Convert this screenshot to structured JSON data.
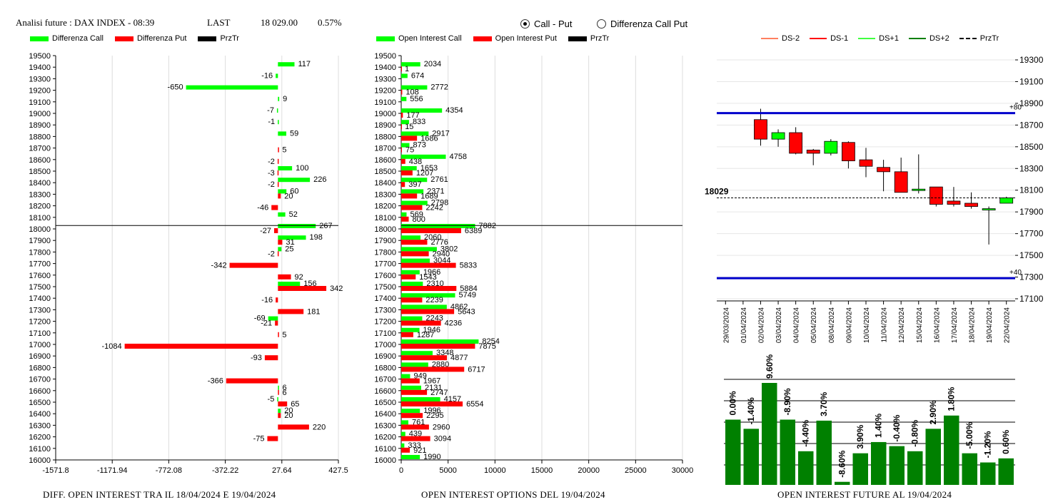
{
  "header": {
    "title": "Analisi future : DAX INDEX - 08:39",
    "last_label": "LAST",
    "last_value": "18 029.00",
    "change": "0.57%"
  },
  "radio": {
    "option1": "Call - Put",
    "option2": "Differenza Call Put",
    "selected": 1
  },
  "colors": {
    "green": "#00ff00",
    "red": "#ff0000",
    "darkgreen": "#008000",
    "blue": "#0000cc"
  },
  "captions": {
    "left": "DIFF. OPEN INTEREST TRA IL 18/04/2024 E 19/04/2024",
    "middle": "OPEN INTEREST OPTIONS DEL 19/04/2024",
    "right": "OPEN INTEREST FUTURE AL 19/04/2024"
  },
  "chart_data": [
    {
      "id": "diff_oi",
      "type": "bar",
      "orientation": "horizontal",
      "legend": [
        "Differenza Call",
        "Differenza Put",
        "PrzTr"
      ],
      "strikes": [
        19500,
        19400,
        19300,
        19200,
        19100,
        19000,
        18900,
        18800,
        18700,
        18600,
        18500,
        18400,
        18300,
        18200,
        18100,
        18000,
        17900,
        17800,
        17700,
        17600,
        17500,
        17400,
        17300,
        17200,
        17100,
        17000,
        16900,
        16800,
        16700,
        16600,
        16500,
        16400,
        16300,
        16200,
        16100,
        16000
      ],
      "series": [
        {
          "name": "Differenza Call",
          "values": [
            null,
            117,
            -16,
            -650,
            9,
            -7,
            -1,
            59,
            null,
            null,
            100,
            226,
            60,
            null,
            52,
            267,
            198,
            25,
            null,
            null,
            156,
            null,
            null,
            -69,
            null,
            null,
            null,
            null,
            null,
            6,
            -5,
            20,
            null,
            null,
            null,
            null
          ]
        },
        {
          "name": "Differenza Put",
          "values": [
            null,
            null,
            null,
            null,
            null,
            null,
            null,
            null,
            5,
            -2,
            -3,
            -2,
            20,
            -46,
            null,
            -27,
            31,
            -2,
            -342,
            92,
            342,
            -16,
            181,
            -21,
            5,
            -1084,
            -93,
            null,
            -366,
            6,
            65,
            20,
            220,
            -75,
            null,
            null
          ]
        }
      ],
      "xticks": [
        "-1571.8",
        "-1171.94",
        "-772.08",
        "-372.22",
        "27.64",
        "427.5"
      ],
      "xlim": [
        -1571.8,
        427.5
      ],
      "price_line": 18029
    },
    {
      "id": "oi_options",
      "type": "bar",
      "orientation": "horizontal",
      "legend": [
        "Open Interest Call",
        "Open Interest Put",
        "PrzTr"
      ],
      "strikes": [
        19500,
        19400,
        19300,
        19200,
        19100,
        19000,
        18900,
        18800,
        18700,
        18600,
        18500,
        18400,
        18300,
        18200,
        18100,
        18000,
        17900,
        17800,
        17700,
        17600,
        17500,
        17400,
        17300,
        17200,
        17100,
        17000,
        16900,
        16800,
        16700,
        16600,
        16500,
        16400,
        16300,
        16200,
        16100,
        16000
      ],
      "series": [
        {
          "name": "Open Interest Call",
          "values": [
            null,
            2034,
            674,
            2772,
            556,
            4354,
            833,
            2917,
            873,
            4758,
            1653,
            2761,
            2371,
            2798,
            569,
            7882,
            2060,
            3802,
            3044,
            1966,
            2310,
            5749,
            4862,
            2243,
            1946,
            8254,
            3348,
            2880,
            949,
            2131,
            4157,
            1996,
            761,
            439,
            333,
            1990
          ]
        },
        {
          "name": "Open Interest Put",
          "values": [
            null,
            1,
            null,
            108,
            null,
            177,
            15,
            1686,
            75,
            438,
            1207,
            397,
            1689,
            2242,
            800,
            6389,
            2776,
            2940,
            5833,
            1543,
            5884,
            2239,
            5643,
            4236,
            1287,
            7875,
            4877,
            6717,
            1967,
            2747,
            6554,
            2295,
            2960,
            3094,
            921,
            null
          ]
        }
      ],
      "xticks": [
        "0",
        "5000",
        "10000",
        "15000",
        "20000",
        "25000",
        "30000"
      ],
      "xlim": [
        0,
        30000
      ],
      "price_line": 18029
    },
    {
      "id": "candles",
      "type": "candlestick",
      "legend": [
        "DS-2",
        "DS-1",
        "DS+1",
        "DS+2",
        "PrzTr"
      ],
      "dates": [
        "29/03/2024",
        "01/04/2024",
        "02/04/2024",
        "03/04/2024",
        "04/04/2024",
        "05/04/2024",
        "08/04/2024",
        "09/04/2024",
        "10/04/2024",
        "11/04/2024",
        "12/04/2024",
        "15/04/2024",
        "16/04/2024",
        "17/04/2024",
        "18/04/2024",
        "19/04/2024",
        "22/04/2024"
      ],
      "ohlc": [
        null,
        null,
        {
          "o": 18750,
          "h": 18850,
          "l": 18510,
          "c": 18570
        },
        {
          "o": 18570,
          "h": 18660,
          "l": 18500,
          "c": 18630
        },
        {
          "o": 18630,
          "h": 18680,
          "l": 18430,
          "c": 18440
        },
        {
          "o": 18470,
          "h": 18480,
          "l": 18330,
          "c": 18440
        },
        {
          "o": 18440,
          "h": 18570,
          "l": 18420,
          "c": 18550
        },
        {
          "o": 18540,
          "h": 18550,
          "l": 18300,
          "c": 18370
        },
        {
          "o": 18380,
          "h": 18490,
          "l": 18220,
          "c": 18320
        },
        {
          "o": 18310,
          "h": 18380,
          "l": 18090,
          "c": 18270
        },
        {
          "o": 18270,
          "h": 18400,
          "l": 18080,
          "c": 18080
        },
        {
          "o": 18110,
          "h": 18430,
          "l": 18070,
          "c": 18110
        },
        {
          "o": 18130,
          "h": 18130,
          "l": 17950,
          "c": 17970
        },
        {
          "o": 18000,
          "h": 18130,
          "l": 17950,
          "c": 17970
        },
        {
          "o": 17980,
          "h": 18080,
          "l": 17930,
          "c": 17950
        },
        {
          "o": 17920,
          "h": 17950,
          "l": 17600,
          "c": 17930
        },
        {
          "o": 17980,
          "h": 18040,
          "l": 17980,
          "c": 18030
        }
      ],
      "yticks": [
        "19300",
        "19100",
        "18900",
        "18700",
        "18500",
        "18300",
        "18100",
        "17900",
        "17700",
        "17500",
        "17300",
        "17100"
      ],
      "ylim": [
        17100,
        19300
      ],
      "levels": [
        {
          "value": 18810,
          "label": "+80"
        },
        {
          "value": 17290,
          "label": "+40"
        }
      ],
      "price_label": "18029",
      "price": 18029
    },
    {
      "id": "future_oi",
      "type": "bar",
      "values": [
        0.0,
        -1.4,
        9.6,
        -8.9,
        -4.4,
        3.7,
        -8.6,
        3.9,
        1.4,
        -0.4,
        -0.8,
        2.9,
        1.8,
        -5.0,
        -1.2,
        0.6
      ],
      "labels": [
        "0.00%",
        "-1.40%",
        "9.60%",
        "-8.90%",
        "-4.40%",
        "3.70%",
        "-8.60%",
        "3.90%",
        "1.40%",
        "-0.40%",
        "-0.80%",
        "2.90%",
        "1.80%",
        "-5.00%",
        "-1.20%",
        "0.60%"
      ],
      "heights": [
        0.64,
        0.55,
        1.0,
        0.64,
        0.33,
        0.63,
        0.03,
        0.31,
        0.42,
        0.38,
        0.33,
        0.55,
        0.68,
        0.31,
        0.22,
        0.26
      ]
    }
  ]
}
